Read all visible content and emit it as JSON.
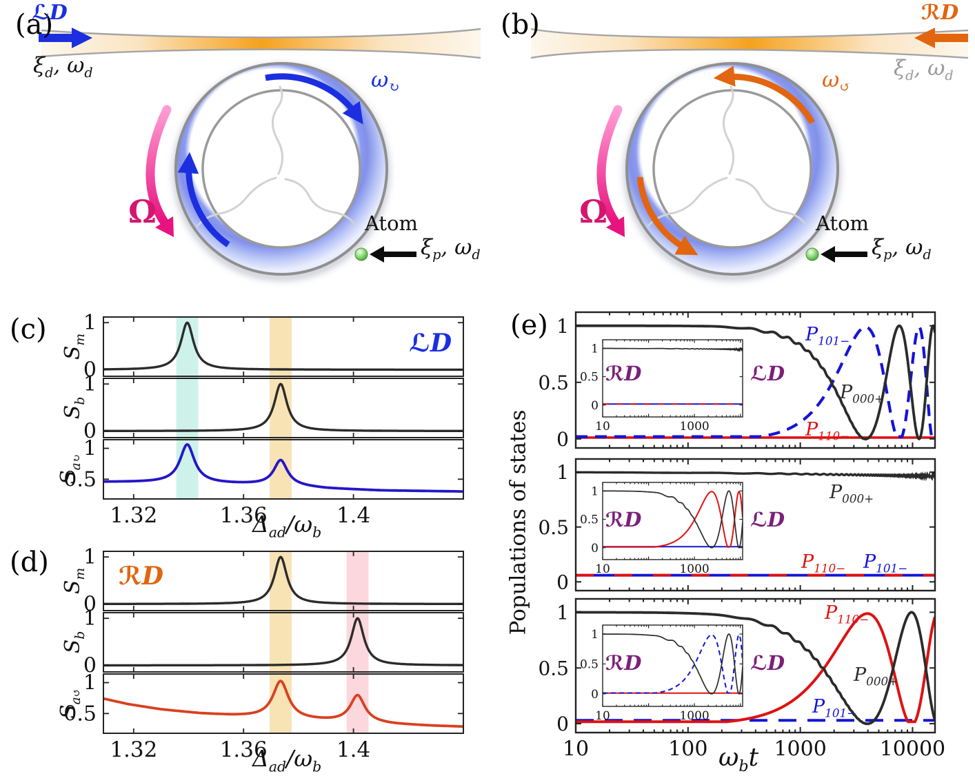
{
  "colors": {
    "blue": "#1414d6",
    "red": "#de1212",
    "black": "#2b2b2b",
    "purple": "#7c2079",
    "ld_blue": "#1b2fe0",
    "rd_orange": "#e2650f",
    "pink_arrow": "#e8137e",
    "omega_pink": "#d4166f",
    "gray_text": "#9a9a9a",
    "band_cyan": "#cdf2e9",
    "band_orange": "#f8e3b5",
    "band_pink": "#fbd7de",
    "spectrum_blue": "#2516c8",
    "spectrum_red": "#d8411f"
  },
  "panel_a": {
    "tag": "(a)",
    "drive": {
      "script": "ℒ",
      "letter": "D"
    },
    "input": {
      "xi": "ξ",
      "xi_sub": "d",
      "rest": ", ω",
      "omega_sub": "d"
    },
    "mode": {
      "base": "ω",
      "sub": "↻"
    },
    "rotation": "Ω",
    "atom": "Atom",
    "probe": {
      "xi": "ξ",
      "xi_sub": "p",
      "rest": ", ω",
      "omega_sub": "d"
    }
  },
  "panel_b": {
    "tag": "(b)",
    "drive": {
      "script": "ℛ",
      "letter": "D"
    },
    "input": {
      "xi": "ξ",
      "xi_sub": "d",
      "rest": ", ω",
      "omega_sub": "d"
    },
    "mode": {
      "base": "ω",
      "sub": "↺"
    },
    "rotation": "Ω",
    "atom": "Atom",
    "probe": {
      "xi": "ξ",
      "xi_sub": "p",
      "rest": ", ω",
      "omega_sub": "d"
    }
  },
  "chart_data": [
    {
      "id": "c",
      "tag": "(c)",
      "type": "line",
      "corner": {
        "script": "ℒ",
        "letter": "D"
      },
      "xlabel": {
        "base": "Δ",
        "sub": "ad",
        "mid": "/",
        "base2": "ω",
        "sub2": "b"
      },
      "xlim": [
        1.309,
        1.44
      ],
      "xticks": [
        {
          "v": 1.32,
          "label": "1.32"
        },
        {
          "v": 1.36,
          "label": "1.36"
        },
        {
          "v": 1.4,
          "label": "1.4"
        }
      ],
      "bands": [
        {
          "x0": 1.3355,
          "x1": 1.3435,
          "color": "#cdf2e9"
        },
        {
          "x0": 1.3695,
          "x1": 1.3775,
          "color": "#f8e3b5"
        }
      ],
      "subplots": [
        {
          "ylabel": {
            "base": "S",
            "sub": "m"
          },
          "ylim": [
            -0.14,
            1.12
          ],
          "yticks": [
            {
              "v": 0,
              "label": "0"
            },
            {
              "v": 1,
              "label": "1"
            }
          ],
          "curves": [
            {
              "color": "#2b2b2b",
              "width": 3.4,
              "baseline": [
                [
                  1.309,
                  0.0
                ],
                [
                  1.44,
                  0.0
                ]
              ],
              "peaks": [
                {
                  "c": 1.3395,
                  "g": 0.0028,
                  "a": 1.0
                }
              ]
            }
          ]
        },
        {
          "ylabel": {
            "base": "S",
            "sub": "b"
          },
          "ylim": [
            -0.14,
            1.12
          ],
          "yticks": [
            {
              "v": 0,
              "label": "0"
            },
            {
              "v": 1,
              "label": "1"
            }
          ],
          "curves": [
            {
              "color": "#2b2b2b",
              "width": 3.4,
              "baseline": [
                [
                  1.309,
                  0.0
                ],
                [
                  1.44,
                  0.0
                ]
              ],
              "peaks": [
                {
                  "c": 1.3735,
                  "g": 0.0028,
                  "a": 1.0
                }
              ]
            }
          ]
        },
        {
          "ylabel": {
            "base": "S",
            "sub": "a",
            "sub2": "↻"
          },
          "ylim": [
            0.18,
            1.14
          ],
          "yticks": [
            {
              "v": 0.5,
              "label": "0.5"
            },
            {
              "v": 1,
              "label": "1"
            }
          ],
          "curves": [
            {
              "color": "#2516c8",
              "width": 3.8,
              "baseline": [
                [
                  1.309,
                  0.455
                ],
                [
                  1.33,
                  0.448
                ],
                [
                  1.35,
                  0.43
                ],
                [
                  1.3735,
                  0.405
                ],
                [
                  1.39,
                  0.35
                ],
                [
                  1.41,
                  0.317
                ],
                [
                  1.44,
                  0.3
                ]
              ],
              "peaks": [
                {
                  "c": 1.3395,
                  "g": 0.0032,
                  "a": 0.62
                },
                {
                  "c": 1.3735,
                  "g": 0.003,
                  "a": 0.4
                }
              ]
            }
          ]
        }
      ]
    },
    {
      "id": "d",
      "tag": "(d)",
      "type": "line",
      "corner": {
        "script": "ℛ",
        "letter": "D"
      },
      "xlabel": {
        "base": "Δ",
        "sub": "ad",
        "mid": "/",
        "base2": "ω",
        "sub2": "b"
      },
      "xlim": [
        1.309,
        1.44
      ],
      "xticks": [
        {
          "v": 1.32,
          "label": "1.32"
        },
        {
          "v": 1.36,
          "label": "1.36"
        },
        {
          "v": 1.4,
          "label": "1.4"
        }
      ],
      "bands": [
        {
          "x0": 1.3695,
          "x1": 1.3775,
          "color": "#f8e3b5"
        },
        {
          "x0": 1.3975,
          "x1": 1.4055,
          "color": "#fbd7de"
        }
      ],
      "subplots": [
        {
          "ylabel": {
            "base": "S",
            "sub": "m"
          },
          "ylim": [
            -0.14,
            1.12
          ],
          "yticks": [
            {
              "v": 0,
              "label": "0"
            },
            {
              "v": 1,
              "label": "1"
            }
          ],
          "curves": [
            {
              "color": "#2b2b2b",
              "width": 3.4,
              "baseline": [
                [
                  1.309,
                  0.0
                ],
                [
                  1.44,
                  0.0
                ]
              ],
              "peaks": [
                {
                  "c": 1.3735,
                  "g": 0.0028,
                  "a": 1.0
                }
              ]
            }
          ]
        },
        {
          "ylabel": {
            "base": "S",
            "sub": "b"
          },
          "ylim": [
            -0.14,
            1.12
          ],
          "yticks": [
            {
              "v": 0,
              "label": "0"
            },
            {
              "v": 1,
              "label": "1"
            }
          ],
          "curves": [
            {
              "color": "#2b2b2b",
              "width": 3.4,
              "baseline": [
                [
                  1.309,
                  0.0
                ],
                [
                  1.44,
                  0.0
                ]
              ],
              "peaks": [
                {
                  "c": 1.4015,
                  "g": 0.0028,
                  "a": 1.0
                }
              ]
            }
          ]
        },
        {
          "ylabel": {
            "base": "S",
            "sub": "a",
            "sub2": "↺"
          },
          "ylim": [
            0.18,
            1.14
          ],
          "yticks": [
            {
              "v": 0.5,
              "label": "0.5"
            },
            {
              "v": 1,
              "label": "1"
            }
          ],
          "curves": [
            {
              "color": "#d8411f",
              "width": 3.8,
              "baseline": [
                [
                  1.309,
                  0.74
                ],
                [
                  1.318,
                  0.65
                ],
                [
                  1.33,
                  0.565
                ],
                [
                  1.344,
                  0.5
                ],
                [
                  1.356,
                  0.465
                ],
                [
                  1.369,
                  0.435
                ],
                [
                  1.38,
                  0.4
                ],
                [
                  1.392,
                  0.375
                ],
                [
                  1.4015,
                  0.36
                ],
                [
                  1.414,
                  0.325
                ],
                [
                  1.428,
                  0.3
                ],
                [
                  1.44,
                  0.285
                ]
              ],
              "peaks": [
                {
                  "c": 1.3735,
                  "g": 0.0034,
                  "a": 0.6
                },
                {
                  "c": 1.4015,
                  "g": 0.0032,
                  "a": 0.43
                }
              ]
            }
          ]
        }
      ]
    },
    {
      "id": "e",
      "tag": "(e)",
      "type": "line-log",
      "ylabel": "Populations of states",
      "xlabel": {
        "base": "ω",
        "sub": "b",
        "tail": "t"
      },
      "xlim": [
        10,
        15849
      ],
      "xticks": [
        {
          "v": 10,
          "label": "10"
        },
        {
          "v": 100,
          "label": "100"
        },
        {
          "v": 1000,
          "label": "1000"
        },
        {
          "v": 10000,
          "label": "10000"
        }
      ],
      "yticks": [
        {
          "v": 0,
          "label": "0"
        },
        {
          "v": 0.5,
          "label": "0.5"
        },
        {
          "v": 1,
          "label": "1"
        }
      ],
      "inset_xlim": [
        10,
        11220
      ],
      "inset_xticks": [
        {
          "v": 10,
          "label": "10"
        },
        {
          "v": 1000,
          "label": "1000"
        }
      ],
      "inset_yticks": [
        {
          "v": 0,
          "label": "0"
        },
        {
          "v": 0.5,
          "label": "0.5"
        },
        {
          "v": 1,
          "label": "1"
        }
      ],
      "inset_left_label": {
        "script": "ℛ",
        "letter": "D"
      },
      "inset_right_label": {
        "script": "ℒ",
        "letter": "D"
      },
      "subplots": [
        {
          "labels": [
            {
              "base": "P",
              "sub": "101−"
            },
            {
              "base": "P",
              "sub": "000+"
            },
            {
              "base": "P",
              "sub": "110−"
            }
          ],
          "curves": [
            {
              "name": "P110-",
              "kind": "flat",
              "value": 0.012,
              "color": "#de1212",
              "width": 3.6
            },
            {
              "name": "P101-",
              "kind": "rabi_sin",
              "t1": 3810,
              "p": 1.0,
              "floor": 0.02,
              "color": "#1414d6",
              "width": 4.2,
              "dash": [
                17,
                11
              ]
            },
            {
              "name": "P000+",
              "kind": "rabi_cos",
              "t1": 3810,
              "p": 1.0,
              "ripple": {
                "amp": 0.025,
                "center": 2.9,
                "width": 0.45,
                "period": 210
              },
              "color": "#2b2b2b",
              "width": 3.8
            }
          ],
          "inset": {
            "curves": [
              {
                "name": "P101-",
                "kind": "flat",
                "value": 0.018,
                "color": "#1414d6",
                "width": 2.0
              },
              {
                "name": "P110-",
                "kind": "flat",
                "value": 0.018,
                "color": "#de1212",
                "width": 2.0,
                "dash": [
                  9,
                  11
                ]
              },
              {
                "name": "P000+",
                "kind": "band",
                "drift": 0.012,
                "amp0": 0.003,
                "amp1": 0.012,
                "period": 240,
                "color": "#2b2b2b",
                "width": 1.7
              }
            ]
          }
        },
        {
          "labels": [
            {
              "base": "P",
              "sub": "000+"
            },
            {
              "base": "P",
              "sub": "110−"
            },
            {
              "base": "P",
              "sub": "101−"
            }
          ],
          "curves": [
            {
              "name": "P101-",
              "kind": "flat",
              "value": 0.06,
              "color": "#1414d6",
              "width": 3.8
            },
            {
              "name": "P110-",
              "kind": "flat",
              "value": 0.06,
              "color": "#de1212",
              "width": 3.8,
              "dash": [
                26,
                30
              ]
            },
            {
              "name": "P000+",
              "kind": "band",
              "drift": 0.03,
              "amp0": 0.002,
              "amp1": 0.013,
              "period": 240,
              "color": "#2b2b2b",
              "width": 3.4
            }
          ],
          "inset": {
            "curves": [
              {
                "name": "P101-",
                "kind": "flat",
                "value": 0.018,
                "color": "#1414d6",
                "width": 2.0
              },
              {
                "name": "P110-",
                "kind": "rabi_sin",
                "t1": 2370,
                "p": 0.8,
                "floor": 0.012,
                "color": "#de1212",
                "width": 2.0
              },
              {
                "name": "P000+",
                "kind": "rabi_cos",
                "t1": 2370,
                "p": 0.8,
                "ripple": {
                  "amp": 0.035,
                  "center": 2.55,
                  "width": 0.4,
                  "period": 200
                },
                "color": "#2b2b2b",
                "width": 1.7
              }
            ]
          }
        },
        {
          "labels": [
            {
              "base": "P",
              "sub": "110−"
            },
            {
              "base": "P",
              "sub": "000+"
            },
            {
              "base": "P",
              "sub": "101−"
            }
          ],
          "curves": [
            {
              "name": "P101-",
              "kind": "flat",
              "value": 0.03,
              "color": "#1414d6",
              "width": 4.0,
              "dash": [
                26,
                16
              ]
            },
            {
              "name": "P110-",
              "kind": "rabi_sin",
              "t1": 3960,
              "p": 0.765,
              "floor": 0.018,
              "color": "#de1212",
              "width": 4.0
            },
            {
              "name": "P000+",
              "kind": "rabi_cos",
              "t1": 3960,
              "p": 0.765,
              "ripple": {
                "amp": 0.025,
                "center": 2.9,
                "width": 0.45,
                "period": 210
              },
              "color": "#2b2b2b",
              "width": 3.8
            }
          ],
          "inset": {
            "curves": [
              {
                "name": "P110-",
                "kind": "flat",
                "value": 0.012,
                "color": "#de1212",
                "width": 2.0
              },
              {
                "name": "P101-",
                "kind": "rabi_sin",
                "t1": 2370,
                "p": 0.8,
                "floor": 0.015,
                "color": "#1414d6",
                "width": 2.0,
                "dash": [
                  7,
                  5
                ]
              },
              {
                "name": "P000+",
                "kind": "rabi_cos",
                "t1": 2370,
                "p": 0.8,
                "ripple": {
                  "amp": 0.035,
                  "center": 2.55,
                  "width": 0.4,
                  "period": 200
                },
                "color": "#2b2b2b",
                "width": 1.7
              }
            ]
          }
        }
      ]
    }
  ]
}
